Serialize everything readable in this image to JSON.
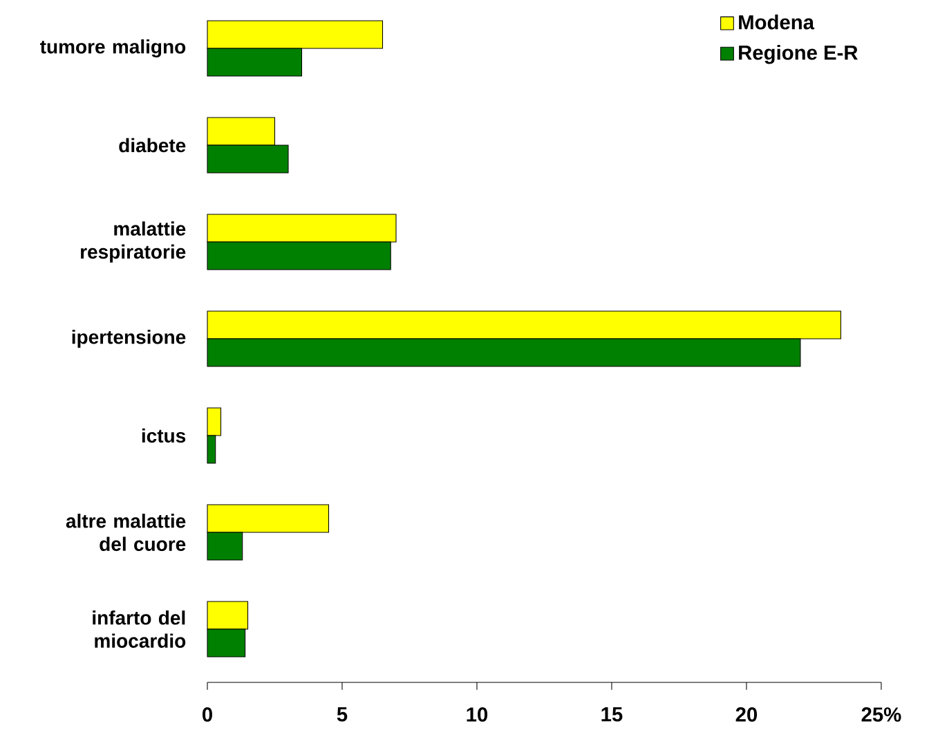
{
  "chart_data": {
    "type": "bar",
    "orientation": "horizontal",
    "categories": [
      "tumore maligno",
      "diabete",
      "malattie respiratorie",
      "ipertensione",
      "ictus",
      "altre malattie del cuore",
      "infarto del miocardio"
    ],
    "series": [
      {
        "name": "Modena",
        "color": "#ffff00",
        "values": [
          6.5,
          2.5,
          7.0,
          23.5,
          0.5,
          4.5,
          1.5
        ]
      },
      {
        "name": "Regione E-R",
        "color": "#008000",
        "values": [
          3.5,
          3.0,
          6.8,
          22.0,
          0.3,
          1.3,
          1.4
        ]
      }
    ],
    "xlim": [
      0,
      25
    ],
    "xticks": [
      0,
      5,
      10,
      15,
      20,
      {
        "value": 25,
        "label": "25%"
      }
    ],
    "grid": false,
    "legend": "top right"
  }
}
